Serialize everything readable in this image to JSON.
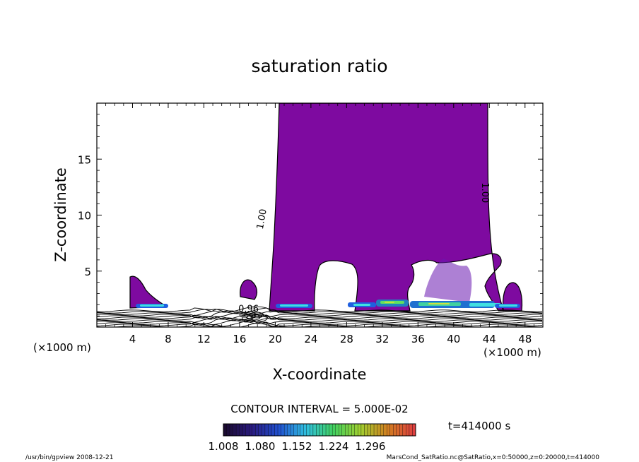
{
  "chart_data": {
    "type": "contour",
    "title": "saturation ratio",
    "xlabel": "X-coordinate",
    "ylabel": "Z-coordinate",
    "x_unit_left": "(×1000 m)",
    "x_unit_right": "(×1000 m)",
    "xlim": [
      0,
      50
    ],
    "ylim": [
      0,
      20
    ],
    "x_ticks": [
      4,
      8,
      12,
      16,
      20,
      24,
      28,
      32,
      36,
      40,
      44,
      48
    ],
    "y_ticks": [
      5,
      10,
      15
    ],
    "contour_labels": [
      {
        "text": "1.00",
        "x": 18.8,
        "z": 9.6,
        "rotate": -80
      },
      {
        "text": "1.00",
        "x": 43.2,
        "z": 12.0,
        "rotate": 90
      },
      {
        "text": "0.96",
        "x": 17.0,
        "z": 1.35,
        "rotate": 0
      }
    ],
    "contour_interval": "CONTOUR INTERVAL = 5.000E-02",
    "time": "t=414000 s",
    "colorbar": {
      "ticks": [
        "1.008",
        "1.080",
        "1.152",
        "1.224",
        "1.296"
      ],
      "min": 1.008,
      "max": 1.296,
      "colors": [
        "#1a0a30",
        "#2a1a80",
        "#2050d0",
        "#30c0e0",
        "#40d060",
        "#a0d030",
        "#d08020",
        "#e04040"
      ]
    },
    "fill_color": "#7e0aa0",
    "regions_supersaturated": [
      {
        "x": [
          19.5,
          43.8
        ],
        "z": [
          1.2,
          19.8
        ]
      },
      {
        "x": [
          4.0,
          7.8
        ],
        "z": [
          1.5,
          4.5
        ]
      },
      {
        "x": [
          16.2,
          18.3
        ],
        "z": [
          2.6,
          4.2
        ]
      },
      {
        "x": [
          44.5,
          48.0
        ],
        "z": [
          1.2,
          4.0
        ]
      }
    ]
  },
  "footer": {
    "program": "/usr/bin/gpview   2008-12-21",
    "source": "MarsCond_SatRatio.nc@SatRatio,x=0:50000,z=0:20000,t=414000"
  }
}
